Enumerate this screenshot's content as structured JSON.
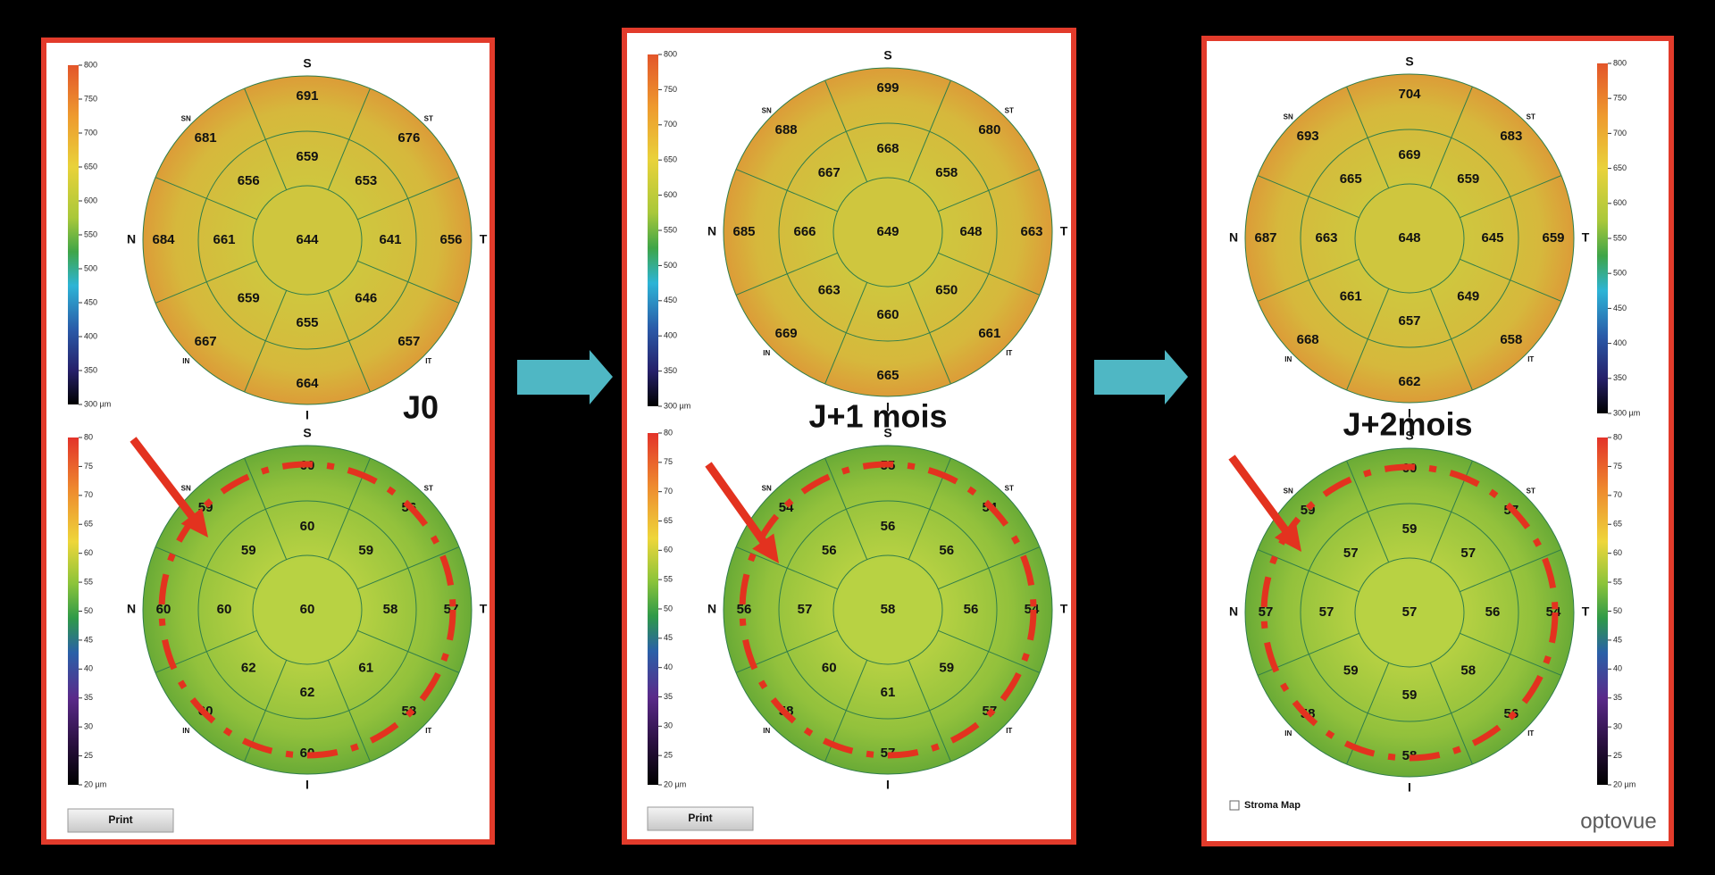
{
  "directions": [
    "S",
    "ST",
    "T",
    "IT",
    "I",
    "IN",
    "N",
    "SN"
  ],
  "panels": [
    {
      "label": "J0",
      "pachymetry": {
        "scale": [
          "800",
          "750",
          "700",
          "650",
          "600",
          "550",
          "500",
          "450",
          "400",
          "350",
          "300 µm"
        ],
        "center": "644",
        "inner": [
          "659",
          "653",
          "641",
          "646",
          "655",
          "659",
          "661",
          "656"
        ],
        "outer": [
          "691",
          "676",
          "656",
          "657",
          "664",
          "667",
          "684",
          "681"
        ]
      },
      "epithelium": {
        "scale": [
          "80",
          "75",
          "70",
          "65",
          "60",
          "55",
          "50",
          "45",
          "40",
          "35",
          "30",
          "25",
          "20 µm"
        ],
        "center": "60",
        "inner": [
          "60",
          "59",
          "58",
          "61",
          "62",
          "62",
          "60",
          "59"
        ],
        "outer": [
          "60",
          "56",
          "57",
          "58",
          "60",
          "60",
          "60",
          "59"
        ]
      },
      "button": "Print"
    },
    {
      "label": "J+1 mois",
      "pachymetry": {
        "scale": [
          "800",
          "750",
          "700",
          "650",
          "600",
          "550",
          "500",
          "450",
          "400",
          "350",
          "300 µm"
        ],
        "center": "649",
        "inner": [
          "668",
          "658",
          "648",
          "650",
          "660",
          "663",
          "666",
          "667"
        ],
        "outer": [
          "699",
          "680",
          "663",
          "661",
          "665",
          "669",
          "685",
          "688"
        ]
      },
      "epithelium": {
        "scale": [
          "80",
          "75",
          "70",
          "65",
          "60",
          "55",
          "50",
          "45",
          "40",
          "35",
          "30",
          "25",
          "20 µm"
        ],
        "center": "58",
        "inner": [
          "56",
          "56",
          "56",
          "59",
          "61",
          "60",
          "57",
          "56"
        ],
        "outer": [
          "55",
          "54",
          "54",
          "57",
          "57",
          "58",
          "56",
          "54"
        ]
      },
      "button": "Print"
    },
    {
      "label": "J+2mois",
      "pachymetry": {
        "scale": [
          "800",
          "750",
          "700",
          "650",
          "600",
          "550",
          "500",
          "450",
          "400",
          "350",
          "300 µm"
        ],
        "center": "648",
        "inner": [
          "669",
          "659",
          "645",
          "649",
          "657",
          "661",
          "663",
          "665"
        ],
        "outer": [
          "704",
          "683",
          "659",
          "658",
          "662",
          "668",
          "687",
          "693"
        ]
      },
      "epithelium": {
        "scale": [
          "80",
          "75",
          "70",
          "65",
          "60",
          "55",
          "50",
          "45",
          "40",
          "35",
          "30",
          "25",
          "20 µm"
        ],
        "center": "57",
        "inner": [
          "59",
          "57",
          "56",
          "58",
          "59",
          "59",
          "57",
          "57"
        ],
        "outer": [
          "60",
          "57",
          "54",
          "56",
          "58",
          "58",
          "57",
          "59"
        ]
      },
      "checkbox": "Stroma Map",
      "logo": "optovue"
    }
  ]
}
